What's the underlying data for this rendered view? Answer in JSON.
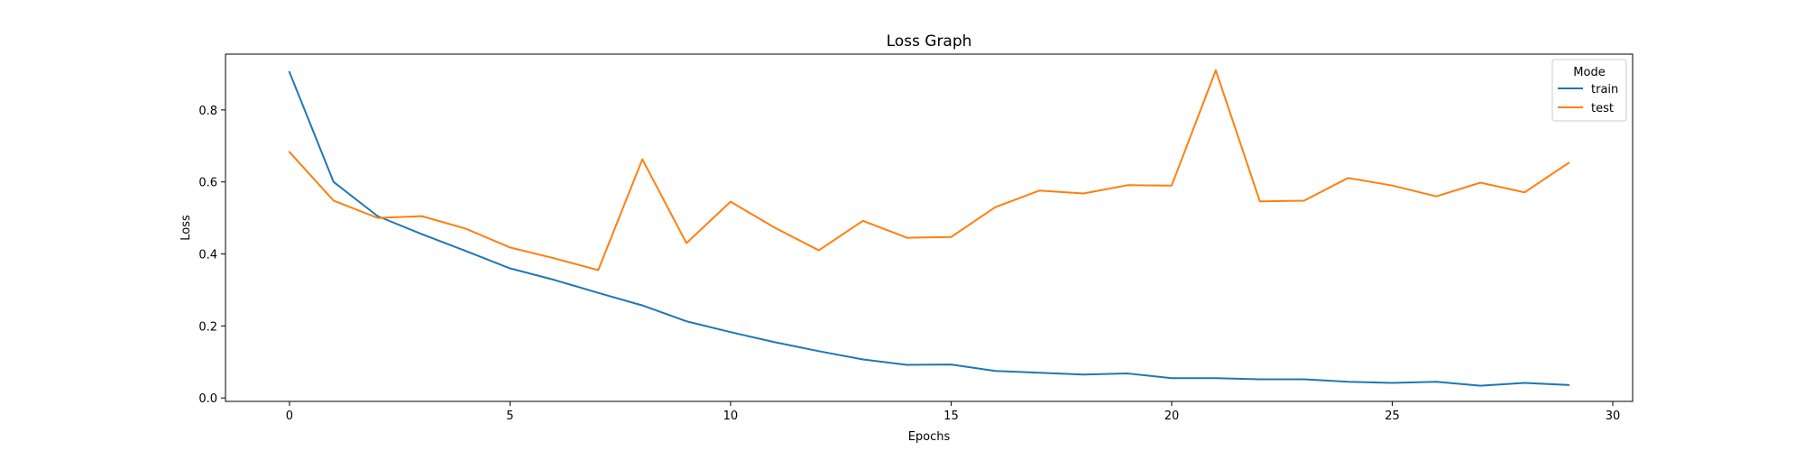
{
  "chart_data": {
    "type": "line",
    "title": "Loss Graph",
    "xlabel": "Epochs",
    "ylabel": "Loss",
    "xlim": [
      -1.45,
      30.45
    ],
    "ylim": [
      -0.0095,
      0.955
    ],
    "xticks": [
      0,
      5,
      10,
      15,
      20,
      25,
      30
    ],
    "yticks": [
      0.0,
      0.2,
      0.4,
      0.6,
      0.8
    ],
    "ytick_labels": [
      "0.0",
      "0.2",
      "0.4",
      "0.6",
      "0.8"
    ],
    "grid": false,
    "legend": {
      "title": "Mode",
      "placement": "top-right"
    },
    "x": [
      0,
      1,
      2,
      3,
      4,
      5,
      6,
      7,
      8,
      9,
      10,
      11,
      12,
      13,
      14,
      15,
      16,
      17,
      18,
      19,
      20,
      21,
      22,
      23,
      24,
      25,
      26,
      27,
      28,
      29
    ],
    "series": [
      {
        "name": "train",
        "color": "#1f77b4",
        "values": [
          0.905,
          0.6,
          0.505,
          0.455,
          0.408,
          0.36,
          0.328,
          0.292,
          0.257,
          0.213,
          0.183,
          0.155,
          0.13,
          0.107,
          0.092,
          0.093,
          0.075,
          0.07,
          0.065,
          0.068,
          0.055,
          0.055,
          0.052,
          0.052,
          0.045,
          0.042,
          0.045,
          0.034,
          0.042,
          0.036
        ]
      },
      {
        "name": "test",
        "color": "#ff7f0e",
        "values": [
          0.683,
          0.548,
          0.5,
          0.505,
          0.47,
          0.418,
          0.388,
          0.355,
          0.663,
          0.43,
          0.545,
          0.473,
          0.41,
          0.492,
          0.445,
          0.447,
          0.53,
          0.576,
          0.568,
          0.591,
          0.59,
          0.91,
          0.546,
          0.548,
          0.611,
          0.59,
          0.56,
          0.598,
          0.571,
          0.653
        ]
      }
    ]
  }
}
